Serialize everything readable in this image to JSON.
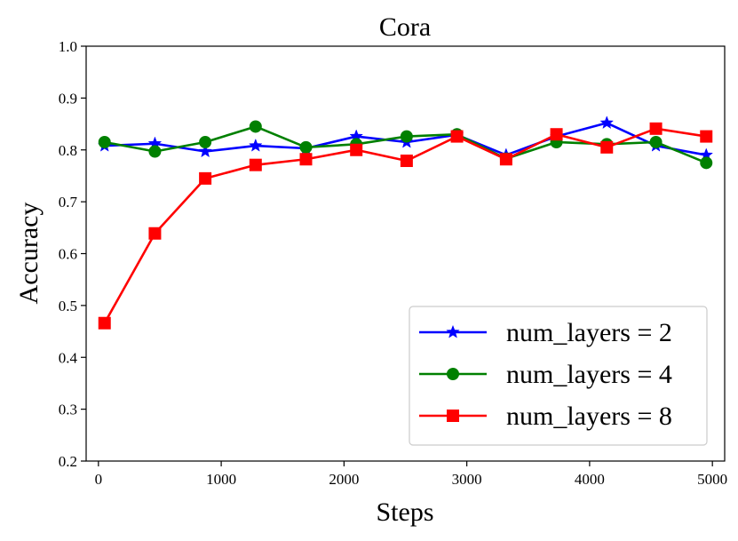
{
  "chart_data": {
    "type": "line",
    "title": "Cora",
    "xlabel": "Steps",
    "ylabel": "Accuracy",
    "xlim": [
      -100,
      5100
    ],
    "ylim": [
      0.2,
      1.0
    ],
    "xticks": [
      0,
      1000,
      2000,
      3000,
      4000,
      5000
    ],
    "yticks": [
      0.2,
      0.3,
      0.4,
      0.5,
      0.6,
      0.7,
      0.8,
      0.9,
      1.0
    ],
    "x": [
      50,
      460,
      870,
      1280,
      1690,
      2100,
      2510,
      2920,
      3320,
      3730,
      4140,
      4540,
      4950
    ],
    "grid": false,
    "legend_position": "lower-right",
    "series": [
      {
        "name": "num_layers = 2",
        "color": "#0000ff",
        "marker": "star",
        "values": [
          0.808,
          0.812,
          0.797,
          0.808,
          0.803,
          0.826,
          0.815,
          0.829,
          0.79,
          0.826,
          0.852,
          0.808,
          0.79
        ]
      },
      {
        "name": "num_layers = 4",
        "color": "#008000",
        "marker": "circle",
        "values": [
          0.815,
          0.797,
          0.815,
          0.845,
          0.805,
          0.811,
          0.826,
          0.83,
          0.783,
          0.815,
          0.811,
          0.815,
          0.775
        ]
      },
      {
        "name": "num_layers = 8",
        "color": "#ff0000",
        "marker": "square",
        "values": [
          0.466,
          0.639,
          0.745,
          0.771,
          0.782,
          0.8,
          0.779,
          0.826,
          0.782,
          0.83,
          0.805,
          0.841,
          0.826
        ]
      }
    ]
  }
}
